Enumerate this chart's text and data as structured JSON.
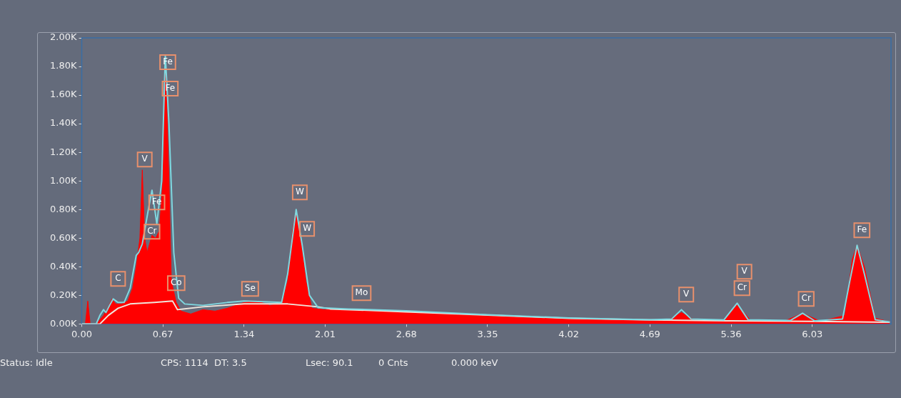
{
  "chart_data": {
    "type": "area",
    "xlim": [
      0,
      6.68
    ],
    "ylim": [
      0,
      2000
    ],
    "xticks": [
      {
        "value": 0,
        "label": "0.00"
      },
      0.67,
      1.34,
      2.01,
      2.68,
      3.35,
      4.02,
      4.69,
      5.36,
      6.03
    ],
    "yticks": [
      {
        "value": 0,
        "label": "0.00K"
      },
      {
        "value": 200,
        "label": "0.20K"
      },
      {
        "value": 400,
        "label": "0.40K"
      },
      {
        "value": 600,
        "label": "0.60K"
      },
      {
        "value": 800,
        "label": "0.80K"
      },
      {
        "value": 1000,
        "label": "1.00K"
      },
      {
        "value": 1200,
        "label": "1.20K"
      },
      {
        "value": 1400,
        "label": "1.40K"
      },
      {
        "value": 1600,
        "label": "1.60K"
      },
      {
        "value": 1800,
        "label": "1.80K"
      },
      {
        "value": 2000,
        "label": "2.00K"
      }
    ],
    "grid": false,
    "legend": false,
    "marker": "none",
    "series": [
      {
        "color": "#ff0000",
        "x": [
          0,
          0.03,
          0.05,
          0.07,
          0.12,
          0.18,
          0.22,
          0.25,
          0.28,
          0.33,
          0.38,
          0.42,
          0.45,
          0.48,
          0.5,
          0.52,
          0.54,
          0.56,
          0.58,
          0.61,
          0.64,
          0.67,
          0.69,
          0.72,
          0.74,
          0.78,
          0.82,
          0.9,
          1.0,
          1.1,
          1.2,
          1.34,
          1.45,
          1.55,
          1.65,
          1.7,
          1.74,
          1.77,
          1.8,
          1.85,
          1.9,
          2.0,
          2.2,
          2.5,
          2.8,
          3.1,
          3.4,
          3.7,
          4.0,
          4.3,
          4.7,
          4.85,
          4.95,
          5.05,
          5.3,
          5.41,
          5.52,
          5.8,
          5.95,
          6.1,
          6.3,
          6.36,
          6.4,
          6.46,
          6.55,
          6.67
        ],
        "values": [
          0,
          0,
          160,
          0,
          0,
          60,
          120,
          175,
          140,
          140,
          160,
          250,
          400,
          600,
          1077,
          600,
          500,
          560,
          620,
          600,
          650,
          1000,
          1875,
          1000,
          300,
          150,
          90,
          70,
          100,
          90,
          110,
          150,
          160,
          130,
          140,
          300,
          650,
          797,
          650,
          300,
          110,
          100,
          100,
          90,
          75,
          65,
          55,
          45,
          38,
          30,
          25,
          30,
          80,
          30,
          25,
          140,
          25,
          20,
          75,
          18,
          60,
          450,
          552,
          400,
          40,
          15
        ]
      },
      {
        "type": "line",
        "color": "#7fd8e0",
        "x": [
          0,
          0.12,
          0.15,
          0.18,
          0.2,
          0.23,
          0.26,
          0.3,
          0.35,
          0.4,
          0.45,
          0.47,
          0.5,
          0.55,
          0.58,
          0.62,
          0.66,
          0.69,
          0.72,
          0.76,
          0.8,
          0.85,
          1.0,
          1.2,
          1.34,
          1.5,
          1.65,
          1.7,
          1.77,
          1.82,
          1.88,
          1.95,
          2.2,
          2.68,
          3.35,
          4.02,
          4.69,
          4.87,
          4.95,
          5.03,
          5.3,
          5.41,
          5.5,
          5.85,
          5.95,
          6.05,
          6.28,
          6.34,
          6.4,
          6.46,
          6.55,
          6.67
        ],
        "values": [
          0,
          0,
          60,
          100,
          80,
          130,
          175,
          150,
          150,
          250,
          480,
          500,
          560,
          800,
          935,
          700,
          1000,
          1880,
          1400,
          500,
          180,
          140,
          130,
          150,
          160,
          155,
          150,
          350,
          800,
          550,
          200,
          115,
          105,
          92,
          65,
          42,
          30,
          35,
          100,
          35,
          28,
          145,
          30,
          25,
          75,
          22,
          35,
          300,
          550,
          350,
          30,
          15
        ]
      },
      {
        "type": "line",
        "color": "#f0e6dc",
        "x": [
          0,
          0.15,
          0.22,
          0.3,
          0.4,
          0.6,
          0.75,
          0.79,
          1.0,
          1.34,
          1.7,
          1.95,
          2.05,
          2.68,
          3.35,
          4.02,
          4.69,
          5.36,
          6.03,
          6.67
        ],
        "values": [
          0,
          0,
          60,
          110,
          140,
          150,
          160,
          100,
          120,
          140,
          140,
          120,
          105,
          85,
          62,
          40,
          28,
          22,
          18,
          12
        ]
      }
    ],
    "annotations": [
      {
        "text": "Fe",
        "x": 0.71,
        "y": 1830
      },
      {
        "text": "Fe",
        "x": 0.73,
        "y": 1645
      },
      {
        "text": "V",
        "x": 0.52,
        "y": 1150
      },
      {
        "text": "Fe",
        "x": 0.62,
        "y": 850
      },
      {
        "text": "Cr",
        "x": 0.58,
        "y": 645
      },
      {
        "text": "C",
        "x": 0.3,
        "y": 315
      },
      {
        "text": "Co",
        "x": 0.78,
        "y": 285
      },
      {
        "text": "Se",
        "x": 1.39,
        "y": 245
      },
      {
        "text": "W",
        "x": 1.8,
        "y": 920
      },
      {
        "text": "W",
        "x": 1.86,
        "y": 665
      },
      {
        "text": "Mo",
        "x": 2.31,
        "y": 215
      },
      {
        "text": "V",
        "x": 4.99,
        "y": 205
      },
      {
        "text": "V",
        "x": 5.47,
        "y": 365
      },
      {
        "text": "Cr",
        "x": 5.45,
        "y": 250
      },
      {
        "text": "Cr",
        "x": 5.98,
        "y": 175
      },
      {
        "text": "Fe",
        "x": 6.44,
        "y": 655
      },
      "Status: Idle",
      "CPS: 1114",
      "DT: 3.5",
      "Lsec: 90.1",
      "0 Cnts",
      "0.000 keV"
    ]
  }
}
